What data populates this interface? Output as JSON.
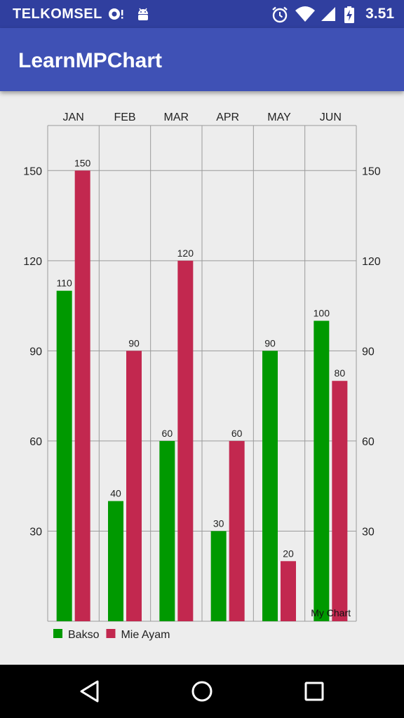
{
  "status_bar": {
    "carrier": "TELKOMSEL",
    "time": "3.51",
    "icons": [
      "camera-notification-icon",
      "android-icon",
      "alarm-icon",
      "wifi-icon",
      "signal-icon",
      "battery-charging-icon"
    ]
  },
  "app_bar": {
    "title": "LearnMPChart"
  },
  "chart_data": {
    "type": "bar",
    "categories": [
      "JAN",
      "FEB",
      "MAR",
      "APR",
      "MAY",
      "JUN"
    ],
    "series": [
      {
        "name": "Bakso",
        "color": "#009900",
        "values": [
          110,
          40,
          60,
          30,
          90,
          100
        ]
      },
      {
        "name": "Mie Ayam",
        "color": "#c2284f",
        "values": [
          150,
          90,
          120,
          60,
          20,
          80
        ]
      }
    ],
    "y_ticks": [
      30,
      60,
      90,
      120,
      150
    ],
    "ylim": [
      0,
      165
    ],
    "axes": "left and right y-axis, x-axis labels on top",
    "grid": true,
    "legend": "bottom-left",
    "description": "My Chart",
    "data_labels": true
  },
  "nav_bar": {
    "buttons": [
      "back",
      "home",
      "recents"
    ]
  }
}
